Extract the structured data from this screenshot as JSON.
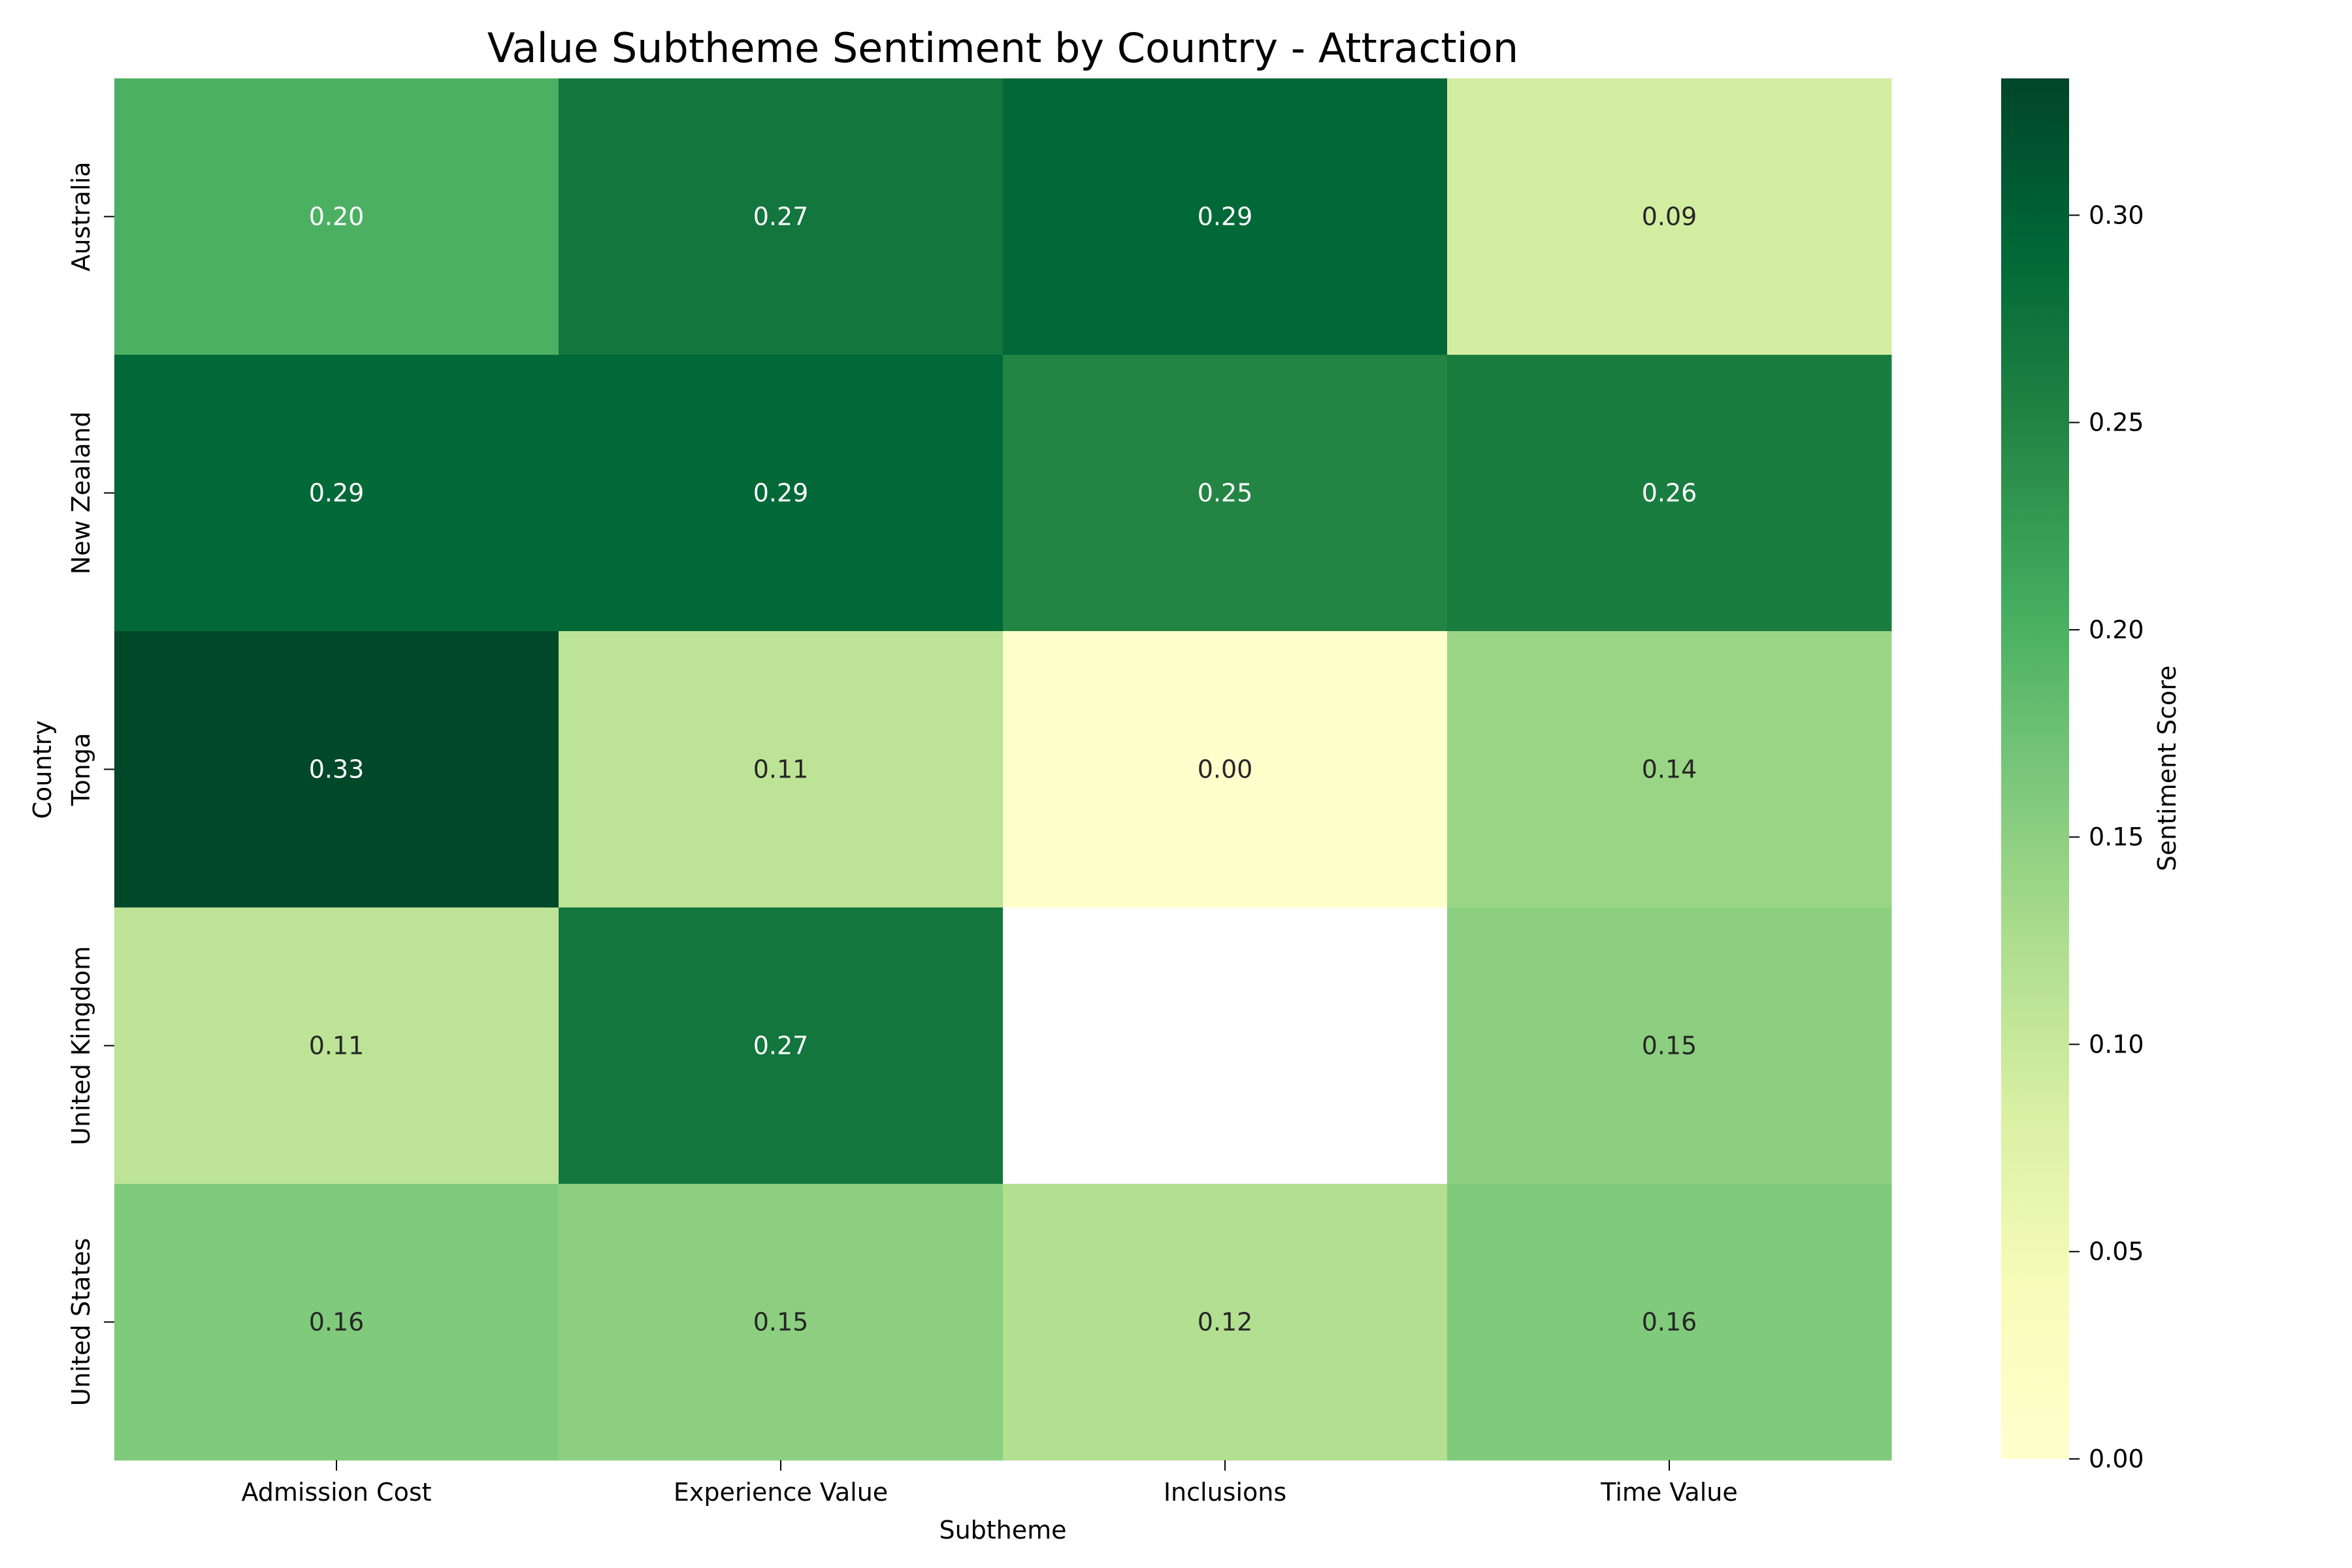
{
  "chart_data": {
    "type": "heatmap",
    "title": "Value Subtheme Sentiment by Country - Attraction",
    "xlabel": "Subtheme",
    "ylabel": "Country",
    "x_categories": [
      "Admission Cost",
      "Experience Value",
      "Inclusions",
      "Time Value"
    ],
    "y_categories": [
      "Australia",
      "New Zealand",
      "Tonga",
      "United Kingdom",
      "United States"
    ],
    "values": [
      [
        0.2,
        0.27,
        0.29,
        0.09
      ],
      [
        0.29,
        0.29,
        0.25,
        0.26
      ],
      [
        0.33,
        0.11,
        0.0,
        0.14
      ],
      [
        0.11,
        0.27,
        null,
        0.15
      ],
      [
        0.16,
        0.15,
        0.12,
        0.16
      ]
    ],
    "value_format": "2 decimals",
    "colormap": "YlGn",
    "colorbar": {
      "label": "Sentiment Score",
      "range": [
        0.0,
        0.333
      ],
      "ticks": [
        0.0,
        0.05,
        0.1,
        0.15,
        0.2,
        0.25,
        0.3
      ],
      "tick_labels": [
        "0.00",
        "0.05",
        "0.10",
        "0.15",
        "0.20",
        "0.25",
        "0.30"
      ]
    },
    "missing_cell_color": "#ffffff"
  }
}
